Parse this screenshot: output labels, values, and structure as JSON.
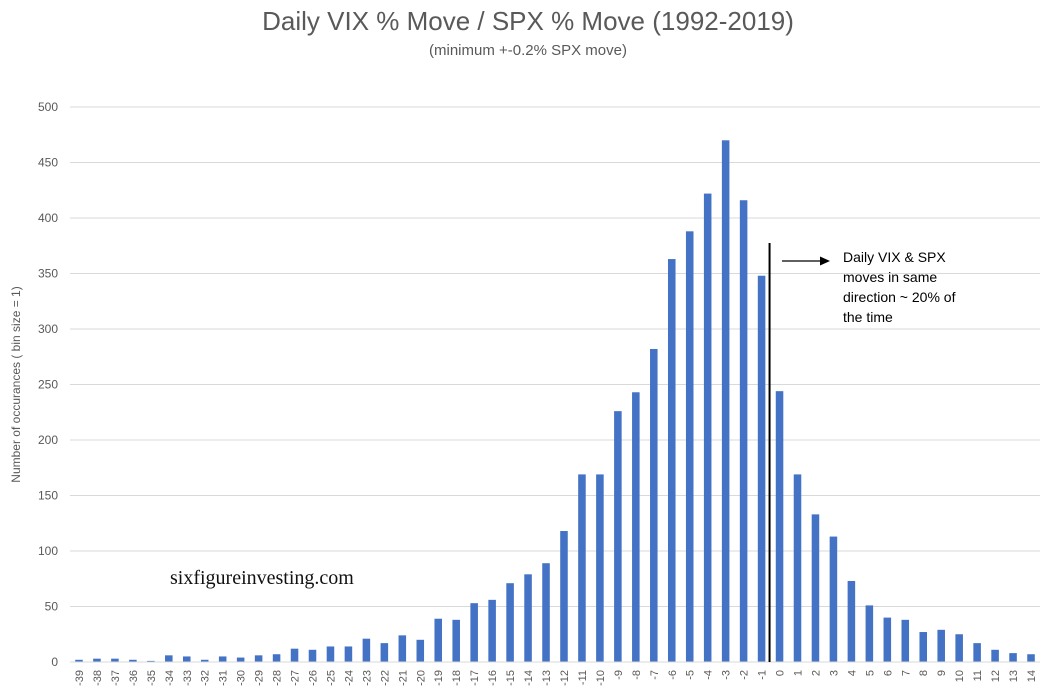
{
  "chart_data": {
    "type": "bar",
    "title": "Daily VIX % Move / SPX % Move (1992-2019)",
    "subtitle": "(minimum +-0.2% SPX move)",
    "xlabel": "",
    "ylabel": "Number of occurances ( bin size = 1)",
    "ylim": [
      0,
      500
    ],
    "yticks": [
      0,
      50,
      100,
      150,
      200,
      250,
      300,
      350,
      400,
      450,
      500
    ],
    "grid": true,
    "bar_color": "#4472C4",
    "categories": [
      "-39",
      "-38",
      "-37",
      "-36",
      "-35",
      "-34",
      "-33",
      "-32",
      "-31",
      "-30",
      "-29",
      "-28",
      "-27",
      "-26",
      "-25",
      "-24",
      "-23",
      "-22",
      "-21",
      "-20",
      "-19",
      "-18",
      "-17",
      "-16",
      "-15",
      "-14",
      "-13",
      "-12",
      "-11",
      "-10",
      "-9",
      "-8",
      "-7",
      "-6",
      "-5",
      "-4",
      "-3",
      "-2",
      "-1",
      "0",
      "1",
      "2",
      "3",
      "4",
      "5",
      "6",
      "7",
      "8",
      "9",
      "10",
      "11",
      "12",
      "13",
      "14"
    ],
    "values": [
      2,
      3,
      3,
      2,
      1,
      6,
      5,
      2,
      5,
      4,
      6,
      7,
      12,
      11,
      14,
      14,
      21,
      17,
      24,
      20,
      39,
      38,
      53,
      56,
      71,
      79,
      89,
      118,
      169,
      169,
      226,
      243,
      282,
      363,
      388,
      422,
      470,
      416,
      348,
      244,
      169,
      133,
      113,
      73,
      51,
      40,
      38,
      27,
      29,
      25,
      17,
      11,
      8,
      7
    ],
    "annotation": "Daily VIX & SPX moves in same direction ~ 20% of the time",
    "watermark": "sixfigureinvesting.com"
  }
}
